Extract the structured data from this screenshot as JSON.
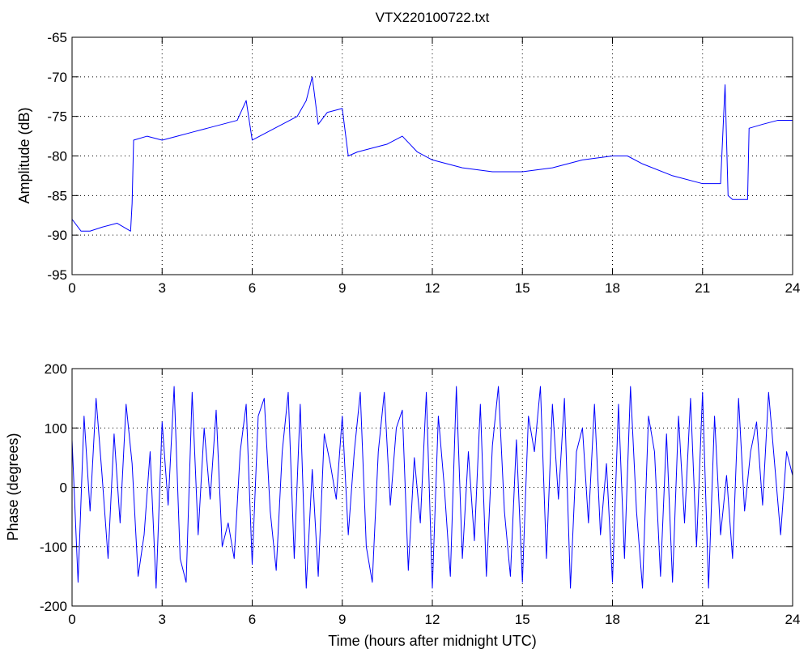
{
  "figure": {
    "title": "VTX220100722.txt"
  },
  "colors": {
    "series": "#0000ff",
    "axes": "#000000",
    "grid": "#000000",
    "background": "#ffffff"
  },
  "chart_data": [
    {
      "type": "line",
      "title": "VTX220100722.txt",
      "xlabel": "",
      "ylabel": "Amplitude (dB)",
      "xlim": [
        0,
        24
      ],
      "ylim": [
        -95,
        -65
      ],
      "xticks": [
        0,
        3,
        6,
        9,
        12,
        15,
        18,
        21,
        24
      ],
      "yticks": [
        -95,
        -90,
        -85,
        -80,
        -75,
        -70,
        -65
      ],
      "grid": true,
      "series": [
        {
          "x": [
            0,
            0.3,
            0.6,
            1.0,
            1.5,
            1.95,
            2.0,
            2.05,
            2.5,
            3.0,
            3.5,
            4.0,
            4.5,
            5.0,
            5.5,
            5.8,
            6.0,
            6.5,
            7.0,
            7.5,
            7.8,
            8.0,
            8.2,
            8.5,
            9.0,
            9.2,
            9.5,
            10.0,
            10.5,
            11.0,
            11.5,
            12.0,
            13.0,
            14.0,
            15.0,
            16.0,
            17.0,
            18.0,
            18.5,
            19.0,
            20.0,
            21.0,
            21.6,
            21.75,
            21.85,
            22.0,
            22.5,
            22.55,
            23.0,
            23.5,
            24.0
          ],
          "y": [
            -88,
            -89.5,
            -89.5,
            -89,
            -88.5,
            -89.5,
            -86,
            -78,
            -77.5,
            -78,
            -77.5,
            -77,
            -76.5,
            -76,
            -75.5,
            -73,
            -78,
            -77,
            -76,
            -75,
            -73,
            -70,
            -76,
            -74.5,
            -74,
            -80,
            -79.5,
            -79,
            -78.5,
            -77.5,
            -79.5,
            -80.5,
            -81.5,
            -82,
            -82,
            -81.5,
            -80.5,
            -80,
            -80,
            -81,
            -82.5,
            -83.5,
            -83.5,
            -71,
            -85,
            -85.5,
            -85.5,
            -76.5,
            -76,
            -75.5,
            -75.5
          ]
        }
      ]
    },
    {
      "type": "line",
      "title": "",
      "xlabel": "Time (hours after midnight UTC)",
      "ylabel": "Phase (degrees)",
      "xlim": [
        0,
        24
      ],
      "ylim": [
        -200,
        200
      ],
      "xticks": [
        0,
        3,
        6,
        9,
        12,
        15,
        18,
        21,
        24
      ],
      "yticks": [
        -200,
        -100,
        0,
        100,
        200
      ],
      "grid": true,
      "series": [
        {
          "x": [
            0,
            0.2,
            0.4,
            0.6,
            0.8,
            1.0,
            1.2,
            1.4,
            1.6,
            1.8,
            2.0,
            2.2,
            2.4,
            2.6,
            2.8,
            3.0,
            3.2,
            3.4,
            3.6,
            3.8,
            4.0,
            4.2,
            4.4,
            4.6,
            4.8,
            5.0,
            5.2,
            5.4,
            5.6,
            5.8,
            6.0,
            6.2,
            6.4,
            6.6,
            6.8,
            7.0,
            7.2,
            7.4,
            7.6,
            7.8,
            8.0,
            8.2,
            8.4,
            8.6,
            8.8,
            9.0,
            9.2,
            9.4,
            9.6,
            9.8,
            10.0,
            10.2,
            10.4,
            10.6,
            10.8,
            11.0,
            11.2,
            11.4,
            11.6,
            11.8,
            12.0,
            12.2,
            12.4,
            12.6,
            12.8,
            13.0,
            13.2,
            13.4,
            13.6,
            13.8,
            14.0,
            14.2,
            14.4,
            14.6,
            14.8,
            15.0,
            15.2,
            15.4,
            15.6,
            15.8,
            16.0,
            16.2,
            16.4,
            16.6,
            16.8,
            17.0,
            17.2,
            17.4,
            17.6,
            17.8,
            18.0,
            18.2,
            18.4,
            18.6,
            18.8,
            19.0,
            19.2,
            19.4,
            19.6,
            19.8,
            20.0,
            20.2,
            20.4,
            20.6,
            20.8,
            21.0,
            21.2,
            21.4,
            21.6,
            21.8,
            22.0,
            22.2,
            22.4,
            22.6,
            22.8,
            23.0,
            23.2,
            23.4,
            23.6,
            23.8,
            24.0
          ],
          "y": [
            80,
            -160,
            120,
            -40,
            150,
            20,
            -120,
            90,
            -60,
            140,
            40,
            -150,
            -80,
            60,
            -170,
            110,
            -30,
            170,
            -120,
            -160,
            160,
            -80,
            100,
            -20,
            130,
            -100,
            -60,
            -120,
            60,
            140,
            -130,
            120,
            150,
            -40,
            -140,
            60,
            160,
            -120,
            140,
            -170,
            30,
            -150,
            90,
            40,
            -20,
            120,
            -80,
            60,
            160,
            -100,
            -160,
            60,
            160,
            -30,
            100,
            130,
            -140,
            50,
            -60,
            160,
            -170,
            120,
            0,
            -150,
            170,
            -120,
            60,
            -90,
            140,
            -150,
            70,
            170,
            -40,
            -150,
            80,
            -160,
            120,
            60,
            170,
            -120,
            140,
            -20,
            150,
            -170,
            60,
            100,
            -60,
            140,
            -80,
            40,
            -160,
            140,
            -120,
            170,
            -40,
            -170,
            120,
            60,
            -150,
            90,
            -160,
            120,
            -60,
            150,
            -100,
            160,
            -170,
            120,
            -80,
            20,
            -120,
            150,
            -40,
            60,
            110,
            -30,
            160,
            40,
            -80,
            60,
            20
          ]
        }
      ]
    }
  ]
}
